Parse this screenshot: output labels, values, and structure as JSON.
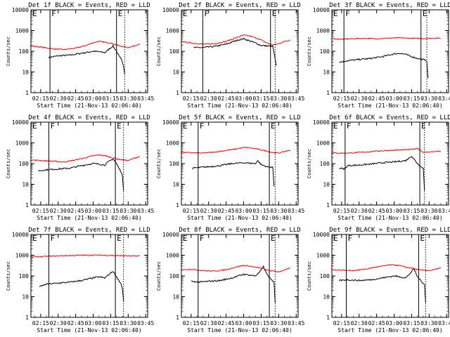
{
  "figure": {
    "xlabel": "Start Time (21-Nov-13 02:06:40)",
    "ylabel": "Counts/sec",
    "title_suffix": "BLACK = Events, RED = LLD",
    "x_ticks": [
      "02:15",
      "02:30",
      "02:45",
      "03:00",
      "03:15",
      "03:30",
      "03:45"
    ],
    "y_ticks": [
      "1",
      "10",
      "100",
      "1000",
      "10000"
    ],
    "marker_F": "F",
    "marker_E": "E",
    "colors": {
      "events": "#000000",
      "lld": "#ff0000",
      "axis": "#000000"
    }
  },
  "chart_data": [
    {
      "type": "line",
      "title": "Det 1f BLACK = Events, RED = LLD",
      "xlabel": "Start Time (21-Nov-13 02:06:40)",
      "ylabel": "Counts/sec",
      "ylog": true,
      "ylim": [
        1,
        10000
      ],
      "xlim": [
        "02:06:40",
        "03:46:40"
      ],
      "series": [
        {
          "name": "Events",
          "color": "#000000",
          "x": [
            "02:22",
            "02:30",
            "02:40",
            "02:50",
            "03:00",
            "03:05",
            "03:10",
            "03:13",
            "03:17",
            "03:20",
            "03:22",
            "03:24",
            "03:25",
            "03:26",
            "03:27"
          ],
          "y": [
            50,
            60,
            65,
            80,
            100,
            95,
            85,
            120,
            180,
            100,
            60,
            40,
            30,
            20,
            8
          ]
        },
        {
          "name": "LLD",
          "color": "#ff0000",
          "x": [
            "02:06",
            "02:15",
            "02:25",
            "02:35",
            "02:45",
            "02:55",
            "03:00",
            "03:05",
            "03:10",
            "03:15",
            "03:20",
            "03:25",
            "03:30",
            "03:35",
            "03:40"
          ],
          "y": [
            180,
            160,
            130,
            120,
            140,
            200,
            260,
            300,
            270,
            250,
            200,
            170,
            150,
            180,
            230
          ]
        }
      ],
      "markers": {
        "F": "02:23",
        "E": "03:20",
        "dotted": "03:27"
      }
    },
    {
      "type": "line",
      "title": "Det 2f BLACK = Events, RED = LLD",
      "xlabel": "Start Time (21-Nov-13 02:06:40)",
      "ylabel": "Counts/sec",
      "ylog": true,
      "ylim": [
        1,
        10000
      ],
      "xlim": [
        "02:06:40",
        "03:46:40"
      ],
      "series": [
        {
          "name": "Events",
          "color": "#000000",
          "x": [
            "02:17",
            "02:25",
            "02:35",
            "02:45",
            "02:55",
            "03:00",
            "03:05",
            "03:10",
            "03:15",
            "03:20",
            "03:25",
            "03:28"
          ],
          "y": [
            150,
            150,
            170,
            220,
            350,
            400,
            320,
            250,
            190,
            180,
            170,
            20
          ]
        },
        {
          "name": "LLD",
          "color": "#ff0000",
          "x": [
            "02:06",
            "02:15",
            "02:25",
            "02:35",
            "02:45",
            "02:55",
            "03:00",
            "03:05",
            "03:10",
            "03:15",
            "03:20",
            "03:25",
            "03:30",
            "03:35",
            "03:40"
          ],
          "y": [
            300,
            250,
            220,
            230,
            300,
            480,
            600,
            550,
            450,
            350,
            250,
            200,
            230,
            300,
            350
          ]
        }
      ],
      "markers": {
        "F": "02:25",
        "E": "03:23",
        "dotted": "03:27"
      }
    },
    {
      "type": "line",
      "title": "Det 3f BLACK = Events, RED = LLD",
      "xlabel": "Start Time (21-Nov-13 02:06:40)",
      "ylabel": "Counts/sec",
      "ylog": true,
      "ylim": [
        1,
        10000
      ],
      "xlim": [
        "02:06:40",
        "03:46:40"
      ],
      "series": [
        {
          "name": "Events",
          "color": "#000000",
          "x": [
            "02:13",
            "02:20",
            "02:30",
            "02:40",
            "02:50",
            "03:00",
            "03:05",
            "03:10",
            "03:15",
            "03:20",
            "03:25",
            "03:28",
            "03:29"
          ],
          "y": [
            30,
            35,
            40,
            45,
            55,
            75,
            80,
            70,
            55,
            45,
            40,
            35,
            5
          ]
        },
        {
          "name": "LLD",
          "color": "#ff0000",
          "x": [
            "02:06",
            "02:15",
            "02:25",
            "02:35",
            "02:45",
            "02:55",
            "03:05",
            "03:15",
            "03:25",
            "03:35",
            "03:40"
          ],
          "y": [
            400,
            380,
            400,
            420,
            400,
            430,
            440,
            420,
            410,
            430,
            420
          ]
        }
      ],
      "markers": {
        "F": "02:17",
        "E": "03:23",
        "dotted": "03:28"
      }
    },
    {
      "type": "line",
      "title": "Det 4f BLACK = Events, RED = LLD",
      "xlabel": "Start Time (21-Nov-13 02:06:40)",
      "ylabel": "Counts/sec",
      "ylog": true,
      "ylim": [
        1,
        10000
      ],
      "xlim": [
        "02:06:40",
        "03:46:40"
      ],
      "series": [
        {
          "name": "Events",
          "color": "#000000",
          "x": [
            "02:13",
            "02:20",
            "02:30",
            "02:40",
            "02:50",
            "03:00",
            "03:05",
            "03:10",
            "03:13",
            "03:17",
            "03:20",
            "03:22",
            "03:24",
            "03:25",
            "03:26"
          ],
          "y": [
            45,
            50,
            55,
            60,
            80,
            100,
            95,
            85,
            120,
            170,
            100,
            60,
            40,
            25,
            5
          ]
        },
        {
          "name": "LLD",
          "color": "#ff0000",
          "x": [
            "02:06",
            "02:15",
            "02:25",
            "02:35",
            "02:45",
            "02:55",
            "03:00",
            "03:05",
            "03:10",
            "03:15",
            "03:20",
            "03:25",
            "03:30",
            "03:35",
            "03:40"
          ],
          "y": [
            150,
            140,
            130,
            120,
            150,
            200,
            240,
            260,
            240,
            200,
            170,
            150,
            140,
            180,
            220
          ]
        }
      ],
      "markers": {
        "F": "02:22",
        "E": "03:19",
        "dotted": "03:26"
      }
    },
    {
      "type": "line",
      "title": "Det 5f BLACK = Events, RED = LLD",
      "xlabel": "Start Time (21-Nov-13 02:06:40)",
      "ylabel": "Counts/sec",
      "ylog": true,
      "ylim": [
        1,
        10000
      ],
      "xlim": [
        "02:06:40",
        "03:46:40"
      ],
      "series": [
        {
          "name": "Events",
          "color": "#000000",
          "x": [
            "02:16",
            "02:22",
            "02:30",
            "02:40",
            "02:50",
            "03:00",
            "03:05",
            "03:10",
            "03:12",
            "03:15",
            "03:20",
            "03:25",
            "03:26"
          ],
          "y": [
            60,
            65,
            70,
            80,
            100,
            110,
            105,
            100,
            140,
            90,
            70,
            65,
            8
          ]
        },
        {
          "name": "LLD",
          "color": "#ff0000",
          "x": [
            "02:06",
            "02:15",
            "02:25",
            "02:35",
            "02:45",
            "02:55",
            "03:00",
            "03:05",
            "03:10",
            "03:15",
            "03:20",
            "03:25",
            "03:30",
            "03:35",
            "03:40"
          ],
          "y": [
            350,
            330,
            320,
            360,
            430,
            520,
            600,
            580,
            520,
            460,
            400,
            340,
            320,
            380,
            450
          ]
        }
      ],
      "markers": {
        "F": "02:21",
        "E": "03:22",
        "dotted": "03:27"
      }
    },
    {
      "type": "line",
      "title": "Det 6f BLACK = Events, RED = LLD",
      "xlabel": "Start Time (21-Nov-13 02:06:40)",
      "ylabel": "Counts/sec",
      "ylog": true,
      "ylim": [
        1,
        10000
      ],
      "xlim": [
        "02:06:40",
        "03:46:40"
      ],
      "series": [
        {
          "name": "Events",
          "color": "#000000",
          "x": [
            "02:13",
            "02:18",
            "02:20",
            "02:30",
            "02:40",
            "02:50",
            "03:00",
            "03:05",
            "03:10",
            "03:15",
            "03:20",
            "03:23",
            "03:25",
            "03:26"
          ],
          "y": [
            60,
            55,
            80,
            85,
            95,
            110,
            120,
            130,
            140,
            230,
            100,
            70,
            60,
            5
          ]
        },
        {
          "name": "LLD",
          "color": "#ff0000",
          "x": [
            "02:06",
            "02:15",
            "02:25",
            "02:35",
            "02:45",
            "02:55",
            "03:05",
            "03:15",
            "03:20",
            "03:25",
            "03:35",
            "03:40"
          ],
          "y": [
            330,
            320,
            330,
            360,
            400,
            430,
            450,
            480,
            550,
            350,
            380,
            400
          ]
        }
      ],
      "markers": {
        "F": "02:18",
        "E": "03:22",
        "dotted": "03:26"
      }
    },
    {
      "type": "line",
      "title": "Det 7f BLACK = Events, RED = LLD",
      "xlabel": "Start Time (21-Nov-13 02:06:40)",
      "ylabel": "Counts/sec",
      "ylog": true,
      "ylim": [
        1,
        10000
      ],
      "xlim": [
        "02:06:40",
        "03:46:40"
      ],
      "series": [
        {
          "name": "Events",
          "color": "#000000",
          "x": [
            "02:14",
            "02:20",
            "02:30",
            "02:40",
            "02:50",
            "03:00",
            "03:05",
            "03:10",
            "03:13",
            "03:17",
            "03:20",
            "03:22",
            "03:24",
            "03:25",
            "03:26"
          ],
          "y": [
            30,
            40,
            45,
            50,
            60,
            80,
            90,
            80,
            110,
            170,
            90,
            60,
            40,
            25,
            6
          ]
        },
        {
          "name": "LLD",
          "color": "#ff0000",
          "x": [
            "02:06",
            "02:15",
            "02:25",
            "02:35",
            "02:45",
            "02:55",
            "03:05",
            "03:15",
            "03:25",
            "03:35",
            "03:40"
          ],
          "y": [
            800,
            850,
            900,
            950,
            980,
            1000,
            1000,
            980,
            950,
            900,
            950
          ]
        }
      ],
      "markers": {
        "F": "02:22",
        "E": "03:19",
        "dotted": "03:26"
      }
    },
    {
      "type": "line",
      "title": "Det 8f BLACK = Events, RED = LLD",
      "xlabel": "Start Time (21-Nov-13 02:06:40)",
      "ylabel": "Counts/sec",
      "ylog": true,
      "ylim": [
        1,
        10000
      ],
      "xlim": [
        "02:06:40",
        "03:46:40"
      ],
      "series": [
        {
          "name": "Events",
          "color": "#000000",
          "x": [
            "02:15",
            "02:22",
            "02:30",
            "02:40",
            "02:50",
            "03:00",
            "03:05",
            "03:10",
            "03:13",
            "03:17",
            "03:20",
            "03:24",
            "03:26",
            "03:27"
          ],
          "y": [
            55,
            50,
            55,
            60,
            80,
            120,
            110,
            100,
            140,
            280,
            120,
            60,
            50,
            5
          ]
        },
        {
          "name": "LLD",
          "color": "#ff0000",
          "x": [
            "02:06",
            "02:15",
            "02:25",
            "02:35",
            "02:45",
            "02:55",
            "03:00",
            "03:05",
            "03:10",
            "03:15",
            "03:20",
            "03:25",
            "03:30",
            "03:35",
            "03:40"
          ],
          "y": [
            200,
            210,
            180,
            170,
            200,
            280,
            320,
            300,
            260,
            240,
            190,
            170,
            160,
            190,
            240
          ]
        }
      ],
      "markers": {
        "F": "02:21",
        "E": "03:22",
        "dotted": "03:27"
      }
    },
    {
      "type": "line",
      "title": "Det 9f BLACK = Events, RED = LLD",
      "xlabel": "Start Time (21-Nov-13 02:06:40)",
      "ylabel": "Counts/sec",
      "ylog": true,
      "ylim": [
        1,
        10000
      ],
      "xlim": [
        "02:06:40",
        "03:46:40"
      ],
      "series": [
        {
          "name": "Events",
          "color": "#000000",
          "x": [
            "02:13",
            "02:20",
            "02:30",
            "02:40",
            "02:50",
            "03:00",
            "03:05",
            "03:10",
            "03:13",
            "03:17",
            "03:20",
            "03:24",
            "03:26",
            "03:27"
          ],
          "y": [
            60,
            65,
            60,
            65,
            80,
            100,
            90,
            80,
            120,
            220,
            90,
            50,
            40,
            5
          ]
        },
        {
          "name": "LLD",
          "color": "#ff0000",
          "x": [
            "02:06",
            "02:15",
            "02:25",
            "02:35",
            "02:45",
            "02:55",
            "03:00",
            "03:05",
            "03:10",
            "03:15",
            "03:20",
            "03:25",
            "03:30",
            "03:35",
            "03:40"
          ],
          "y": [
            200,
            190,
            180,
            210,
            270,
            330,
            340,
            310,
            260,
            240,
            200,
            190,
            180,
            200,
            250
          ]
        }
      ],
      "markers": {
        "F": "02:19",
        "E": "03:21",
        "dotted": "03:27"
      }
    }
  ]
}
